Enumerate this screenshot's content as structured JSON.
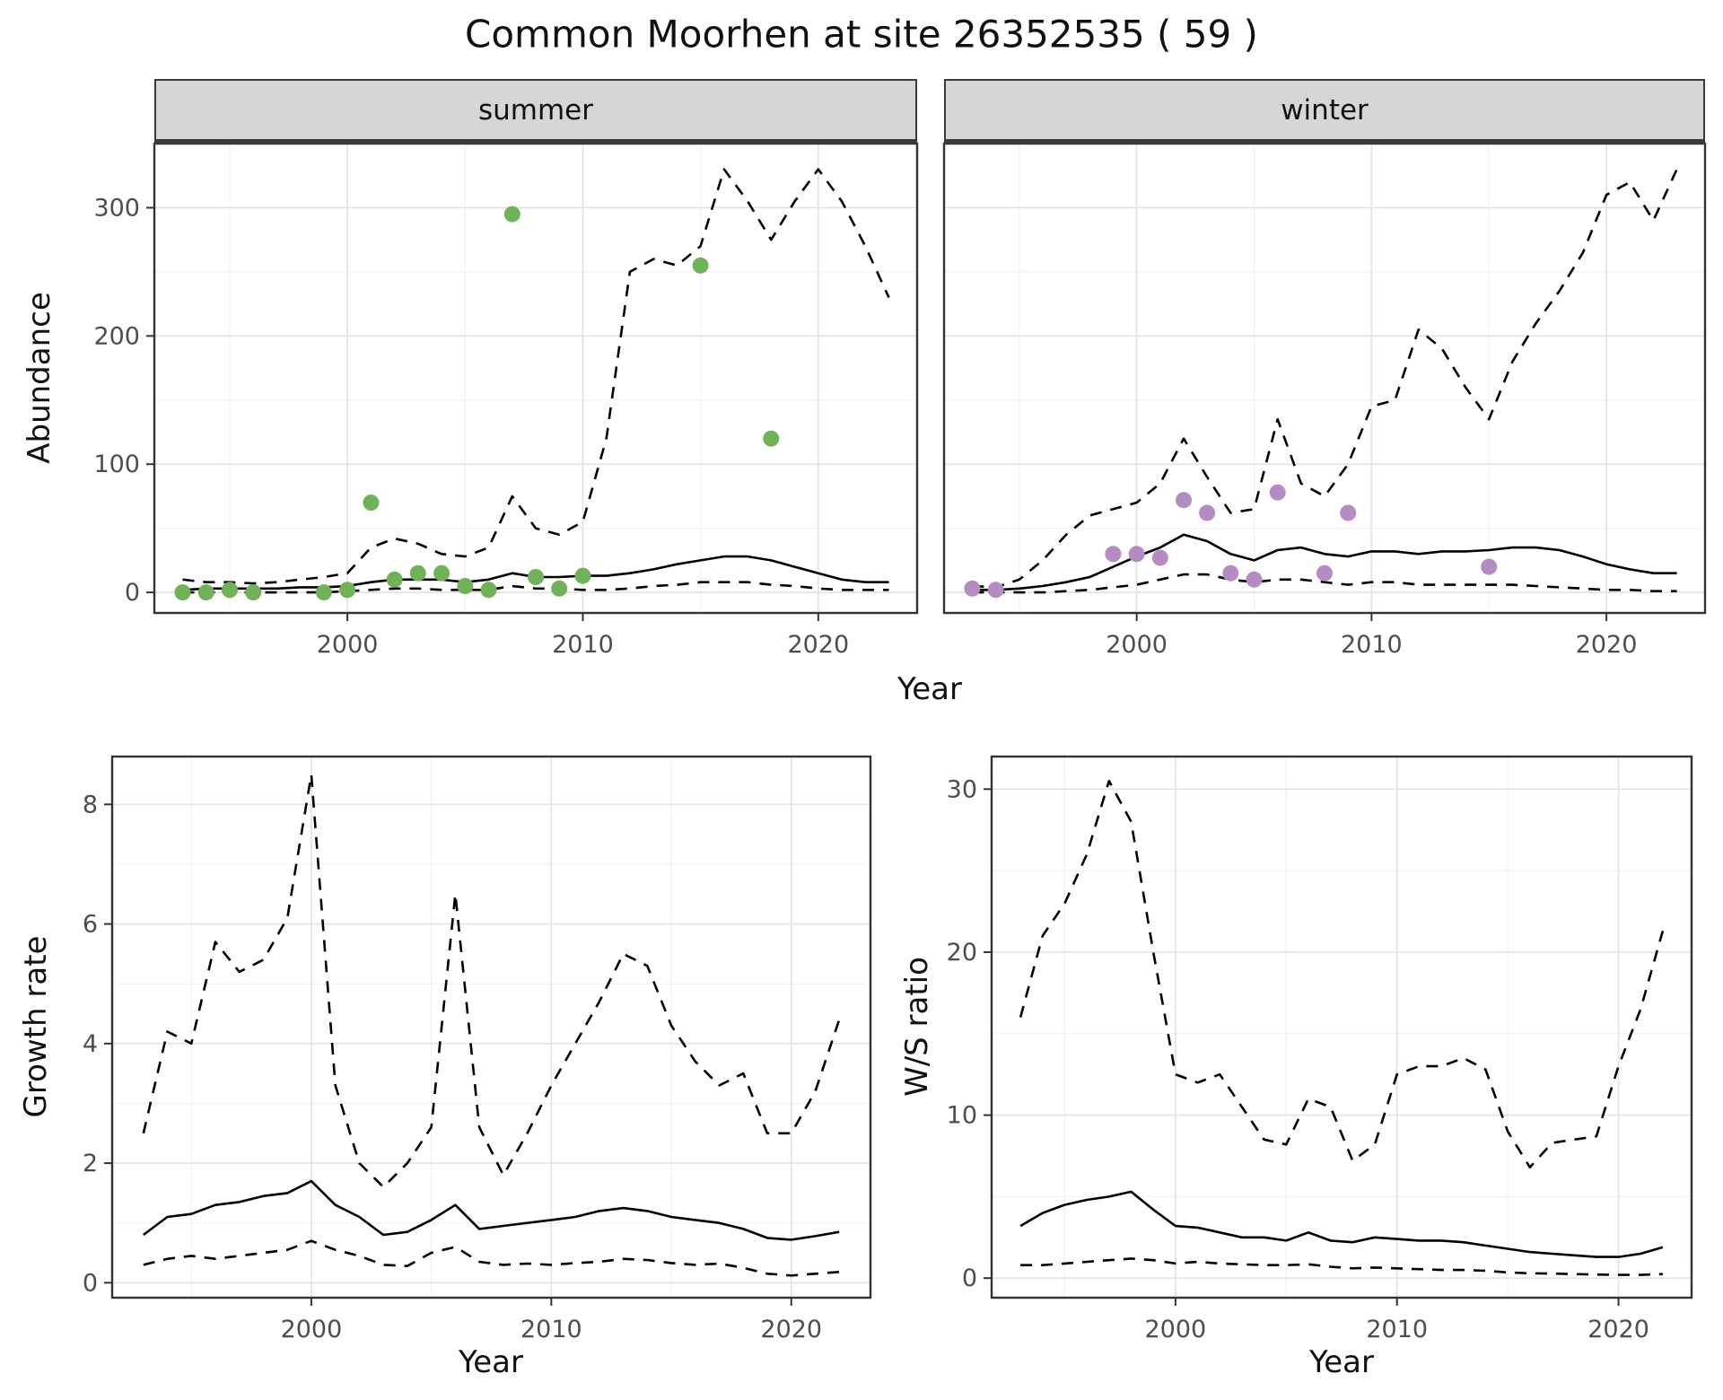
{
  "chart_data": {
    "type": "line",
    "title": "Common Moorhen at site 26352535 ( 59 )",
    "facets": [
      "summer",
      "winter"
    ],
    "legend_position": "none",
    "grid": "on",
    "theme": {
      "line_color": "#000000",
      "summer_point_color": "#6fb257",
      "winter_point_color": "#b48cc2",
      "strip_fill": "#d6d6d6",
      "grid_major": "#e3e3e3",
      "grid_minor": "#f1f1f1",
      "panel_border": "#333333",
      "tick_label_color": "#4d4d4d"
    },
    "panels": [
      {
        "id": "abundance-summer",
        "facet_label": "summer",
        "xlabel": "Year",
        "ylabel": "Abundance",
        "xlim": [
          1991.8,
          2024.2
        ],
        "ylim": [
          -16,
          350
        ],
        "xticks": [
          2000,
          2010,
          2020
        ],
        "yticks": [
          0,
          100,
          200,
          300
        ],
        "series": [
          {
            "name": "upper_ci",
            "style": "dashed",
            "x": [
              1993,
              1994,
              1995,
              1996,
              1997,
              1998,
              1999,
              2000,
              2001,
              2002,
              2003,
              2004,
              2005,
              2006,
              2007,
              2008,
              2009,
              2010,
              2011,
              2012,
              2013,
              2014,
              2015,
              2016,
              2017,
              2018,
              2019,
              2020,
              2021,
              2022,
              2023
            ],
            "y": [
              10,
              8,
              8,
              7,
              8,
              10,
              12,
              15,
              35,
              42,
              38,
              30,
              28,
              35,
              75,
              50,
              45,
              55,
              120,
              250,
              260,
              255,
              270,
              330,
              305,
              275,
              305,
              330,
              305,
              270,
              230
            ]
          },
          {
            "name": "median",
            "style": "solid",
            "x": [
              1993,
              1994,
              1995,
              1996,
              1997,
              1998,
              1999,
              2000,
              2001,
              2002,
              2003,
              2004,
              2005,
              2006,
              2007,
              2008,
              2009,
              2010,
              2011,
              2012,
              2013,
              2014,
              2015,
              2016,
              2017,
              2018,
              2019,
              2020,
              2021,
              2022,
              2023
            ],
            "y": [
              2,
              3,
              3,
              3,
              3,
              4,
              4,
              5,
              8,
              10,
              10,
              10,
              8,
              10,
              15,
              12,
              12,
              13,
              13,
              15,
              18,
              22,
              25,
              28,
              28,
              25,
              20,
              15,
              10,
              8,
              8
            ]
          },
          {
            "name": "lower_ci",
            "style": "dashed",
            "x": [
              1993,
              1994,
              1995,
              1996,
              1997,
              1998,
              1999,
              2000,
              2001,
              2002,
              2003,
              2004,
              2005,
              2006,
              2007,
              2008,
              2009,
              2010,
              2011,
              2012,
              2013,
              2014,
              2015,
              2016,
              2017,
              2018,
              2019,
              2020,
              2021,
              2022,
              2023
            ],
            "y": [
              0,
              0,
              0,
              0,
              0,
              0,
              0,
              1,
              2,
              3,
              3,
              2,
              2,
              2,
              5,
              3,
              3,
              2,
              2,
              3,
              5,
              6,
              8,
              8,
              8,
              6,
              5,
              3,
              2,
              2,
              2
            ]
          },
          {
            "name": "observed",
            "style": "points",
            "color": "#6fb257",
            "x": [
              1993,
              1994,
              1995,
              1996,
              1999,
              2000,
              2001,
              2002,
              2003,
              2004,
              2005,
              2006,
              2007,
              2008,
              2009,
              2010,
              2015,
              2018
            ],
            "y": [
              0,
              0,
              2,
              0,
              0,
              2,
              70,
              10,
              15,
              15,
              5,
              2,
              295,
              12,
              3,
              13,
              255,
              120
            ]
          }
        ]
      },
      {
        "id": "abundance-winter",
        "facet_label": "winter",
        "xlabel": "Year",
        "ylabel": "Abundance",
        "xlim": [
          1991.8,
          2024.2
        ],
        "ylim": [
          -16,
          350
        ],
        "xticks": [
          2000,
          2010,
          2020
        ],
        "yticks": [
          0,
          100,
          200,
          300
        ],
        "series": [
          {
            "name": "upper_ci",
            "style": "dashed",
            "x": [
              1993,
              1994,
              1995,
              1996,
              1997,
              1998,
              1999,
              2000,
              2001,
              2002,
              2003,
              2004,
              2005,
              2006,
              2007,
              2008,
              2009,
              2010,
              2011,
              2012,
              2013,
              2014,
              2015,
              2016,
              2017,
              2018,
              2019,
              2020,
              2021,
              2022,
              2023
            ],
            "y": [
              5,
              4,
              10,
              25,
              45,
              60,
              65,
              70,
              85,
              120,
              90,
              62,
              65,
              135,
              85,
              75,
              100,
              145,
              150,
              205,
              190,
              160,
              135,
              180,
              210,
              235,
              265,
              310,
              320,
              290,
              330
            ]
          },
          {
            "name": "median",
            "style": "solid",
            "x": [
              1993,
              1994,
              1995,
              1996,
              1997,
              1998,
              1999,
              2000,
              2001,
              2002,
              2003,
              2004,
              2005,
              2006,
              2007,
              2008,
              2009,
              2010,
              2011,
              2012,
              2013,
              2014,
              2015,
              2016,
              2017,
              2018,
              2019,
              2020,
              2021,
              2022,
              2023
            ],
            "y": [
              2,
              2,
              3,
              5,
              8,
              12,
              20,
              28,
              35,
              45,
              40,
              30,
              25,
              33,
              35,
              30,
              28,
              32,
              32,
              30,
              32,
              32,
              33,
              35,
              35,
              33,
              28,
              22,
              18,
              15,
              15
            ]
          },
          {
            "name": "lower_ci",
            "style": "dashed",
            "x": [
              1993,
              1994,
              1995,
              1996,
              1997,
              1998,
              1999,
              2000,
              2001,
              2002,
              2003,
              2004,
              2005,
              2006,
              2007,
              2008,
              2009,
              2010,
              2011,
              2012,
              2013,
              2014,
              2015,
              2016,
              2017,
              2018,
              2019,
              2020,
              2021,
              2022,
              2023
            ],
            "y": [
              0,
              0,
              0,
              0,
              1,
              2,
              4,
              6,
              10,
              14,
              14,
              10,
              8,
              10,
              10,
              8,
              6,
              8,
              8,
              6,
              6,
              6,
              6,
              6,
              5,
              4,
              3,
              2,
              2,
              1,
              1
            ]
          },
          {
            "name": "observed",
            "style": "points",
            "color": "#b48cc2",
            "x": [
              1993,
              1994,
              1999,
              2000,
              2001,
              2002,
              2003,
              2004,
              2005,
              2006,
              2008,
              2009,
              2015
            ],
            "y": [
              3,
              2,
              30,
              30,
              27,
              72,
              62,
              15,
              10,
              78,
              15,
              62,
              20
            ]
          }
        ]
      },
      {
        "id": "growth-rate",
        "facet_label": "",
        "xlabel": "Year",
        "ylabel": "Growth rate",
        "xlim": [
          1991.7,
          2023.3
        ],
        "ylim": [
          -0.25,
          8.8
        ],
        "xticks": [
          2000,
          2010,
          2020
        ],
        "yticks": [
          0,
          2,
          4,
          6,
          8
        ],
        "series": [
          {
            "name": "upper_ci",
            "style": "dashed",
            "x": [
              1993,
              1994,
              1995,
              1996,
              1997,
              1998,
              1999,
              2000,
              2001,
              2002,
              2003,
              2004,
              2005,
              2006,
              2007,
              2008,
              2009,
              2010,
              2011,
              2012,
              2013,
              2014,
              2015,
              2016,
              2017,
              2018,
              2019,
              2020,
              2021,
              2022
            ],
            "y": [
              2.5,
              4.2,
              4.0,
              5.7,
              5.2,
              5.4,
              6.1,
              8.5,
              3.3,
              2.0,
              1.6,
              2.0,
              2.6,
              6.5,
              2.6,
              1.8,
              2.5,
              3.3,
              4.0,
              4.7,
              5.5,
              5.3,
              4.3,
              3.7,
              3.3,
              3.5,
              2.5,
              2.5,
              3.2,
              4.4
            ]
          },
          {
            "name": "median",
            "style": "solid",
            "x": [
              1993,
              1994,
              1995,
              1996,
              1997,
              1998,
              1999,
              2000,
              2001,
              2002,
              2003,
              2004,
              2005,
              2006,
              2007,
              2008,
              2009,
              2010,
              2011,
              2012,
              2013,
              2014,
              2015,
              2016,
              2017,
              2018,
              2019,
              2020,
              2021,
              2022
            ],
            "y": [
              0.8,
              1.1,
              1.15,
              1.3,
              1.35,
              1.45,
              1.5,
              1.7,
              1.3,
              1.1,
              0.8,
              0.85,
              1.05,
              1.3,
              0.9,
              0.95,
              1.0,
              1.05,
              1.1,
              1.2,
              1.25,
              1.2,
              1.1,
              1.05,
              1.0,
              0.9,
              0.75,
              0.72,
              0.78,
              0.85
            ]
          },
          {
            "name": "lower_ci",
            "style": "dashed",
            "x": [
              1993,
              1994,
              1995,
              1996,
              1997,
              1998,
              1999,
              2000,
              2001,
              2002,
              2003,
              2004,
              2005,
              2006,
              2007,
              2008,
              2009,
              2010,
              2011,
              2012,
              2013,
              2014,
              2015,
              2016,
              2017,
              2018,
              2019,
              2020,
              2021,
              2022
            ],
            "y": [
              0.3,
              0.4,
              0.45,
              0.4,
              0.45,
              0.5,
              0.55,
              0.7,
              0.55,
              0.45,
              0.3,
              0.28,
              0.5,
              0.6,
              0.35,
              0.3,
              0.32,
              0.3,
              0.33,
              0.35,
              0.4,
              0.38,
              0.33,
              0.3,
              0.32,
              0.25,
              0.15,
              0.12,
              0.15,
              0.18
            ]
          }
        ]
      },
      {
        "id": "ws-ratio",
        "facet_label": "",
        "xlabel": "Year",
        "ylabel": "W/S ratio",
        "xlim": [
          1991.7,
          2023.3
        ],
        "ylim": [
          -1.2,
          32
        ],
        "xticks": [
          2000,
          2010,
          2020
        ],
        "yticks": [
          0,
          10,
          20,
          30
        ],
        "series": [
          {
            "name": "upper_ci",
            "style": "dashed",
            "x": [
              1993,
              1994,
              1995,
              1996,
              1997,
              1998,
              1999,
              2000,
              2001,
              2002,
              2003,
              2004,
              2005,
              2006,
              2007,
              2008,
              2009,
              2010,
              2011,
              2012,
              2013,
              2014,
              2015,
              2016,
              2017,
              2018,
              2019,
              2020,
              2021,
              2022
            ],
            "y": [
              16,
              21,
              23,
              26,
              30.5,
              28,
              20,
              12.5,
              12,
              12.5,
              10.5,
              8.5,
              8.2,
              11,
              10.5,
              7.2,
              8.2,
              12.5,
              13,
              13,
              13.5,
              12.8,
              9.0,
              6.8,
              8.3,
              8.5,
              8.7,
              13,
              16.5,
              21.3
            ]
          },
          {
            "name": "median",
            "style": "solid",
            "x": [
              1993,
              1994,
              1995,
              1996,
              1997,
              1998,
              1999,
              2000,
              2001,
              2002,
              2003,
              2004,
              2005,
              2006,
              2007,
              2008,
              2009,
              2010,
              2011,
              2012,
              2013,
              2014,
              2015,
              2016,
              2017,
              2018,
              2019,
              2020,
              2021,
              2022
            ],
            "y": [
              3.2,
              4.0,
              4.5,
              4.8,
              5.0,
              5.3,
              4.2,
              3.2,
              3.1,
              2.8,
              2.5,
              2.5,
              2.3,
              2.8,
              2.3,
              2.2,
              2.5,
              2.4,
              2.3,
              2.3,
              2.2,
              2.0,
              1.8,
              1.6,
              1.5,
              1.4,
              1.3,
              1.3,
              1.5,
              1.9
            ]
          },
          {
            "name": "lower_ci",
            "style": "dashed",
            "x": [
              1993,
              1994,
              1995,
              1996,
              1997,
              1998,
              1999,
              2000,
              2001,
              2002,
              2003,
              2004,
              2005,
              2006,
              2007,
              2008,
              2009,
              2010,
              2011,
              2012,
              2013,
              2014,
              2015,
              2016,
              2017,
              2018,
              2019,
              2020,
              2021,
              2022
            ],
            "y": [
              0.8,
              0.8,
              0.9,
              1.0,
              1.1,
              1.2,
              1.1,
              0.9,
              1.0,
              0.9,
              0.85,
              0.8,
              0.8,
              0.85,
              0.7,
              0.6,
              0.65,
              0.6,
              0.55,
              0.5,
              0.5,
              0.45,
              0.35,
              0.3,
              0.28,
              0.25,
              0.22,
              0.2,
              0.2,
              0.25
            ]
          }
        ]
      }
    ]
  }
}
